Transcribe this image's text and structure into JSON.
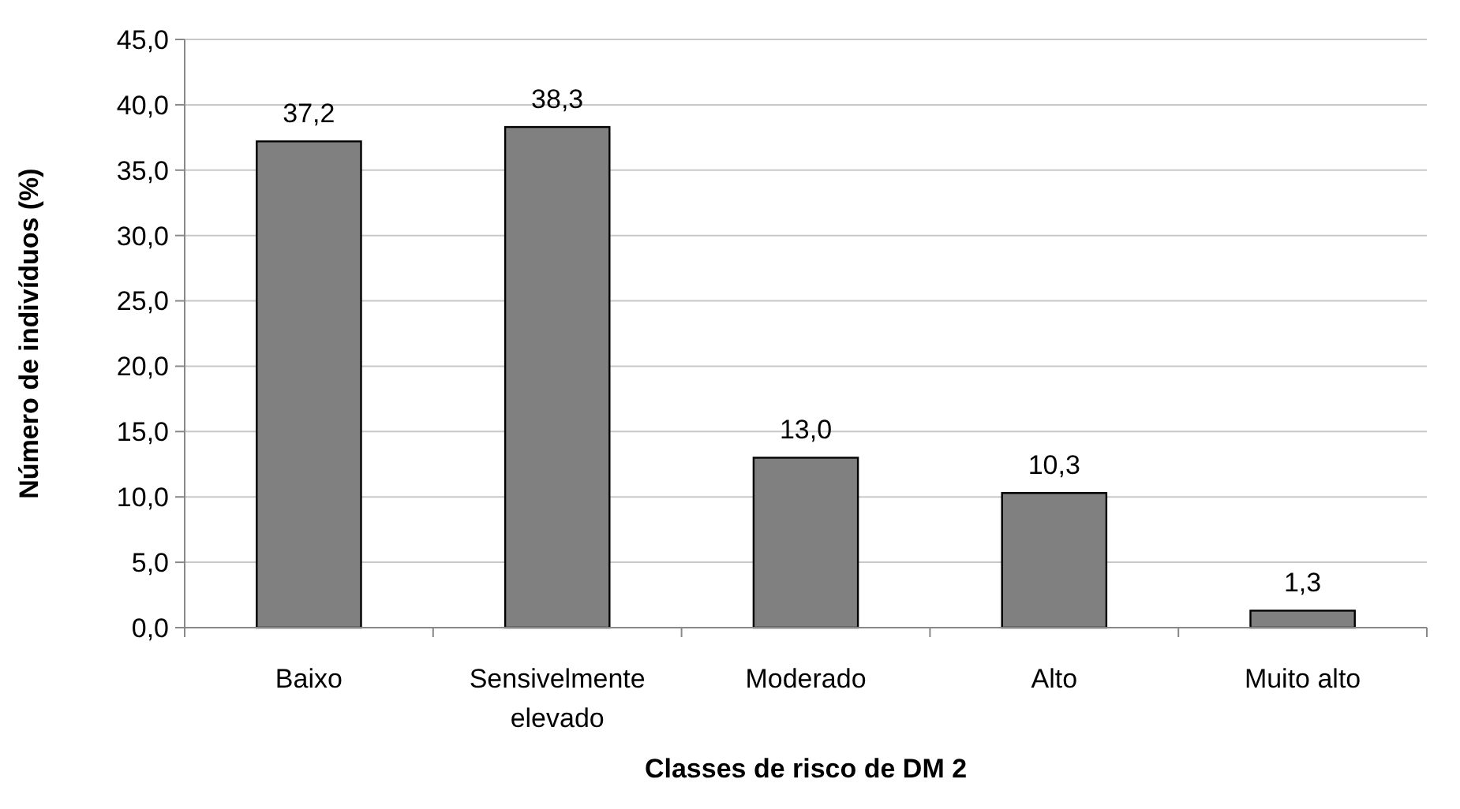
{
  "chart_data": {
    "type": "bar",
    "xlabel": "Classes de risco de DM 2",
    "ylabel": "Número de indivíduos (%)",
    "categories": [
      "Baixo",
      "Sensivelmente elevado",
      "Moderado",
      "Alto",
      "Muito alto"
    ],
    "values": [
      37.2,
      38.3,
      13.0,
      10.3,
      1.3
    ],
    "value_labels": [
      "37,2",
      "38,3",
      "13,0",
      "10,3",
      "1,3"
    ],
    "color": "#808080",
    "grid": "y",
    "ylim": [
      0,
      45
    ],
    "yticks": [
      {
        "value": 0,
        "label": "0,0"
      },
      {
        "value": 5,
        "label": "5,0"
      },
      {
        "value": 10,
        "label": "10,0"
      },
      {
        "value": 15,
        "label": "15,0"
      },
      {
        "value": 20,
        "label": "20,0"
      },
      {
        "value": 25,
        "label": "25,0"
      },
      {
        "value": 30,
        "label": "30,0"
      },
      {
        "value": 35,
        "label": "35,0"
      },
      {
        "value": 40,
        "label": "40,0"
      },
      {
        "value": 45,
        "label": "45,0"
      }
    ]
  }
}
